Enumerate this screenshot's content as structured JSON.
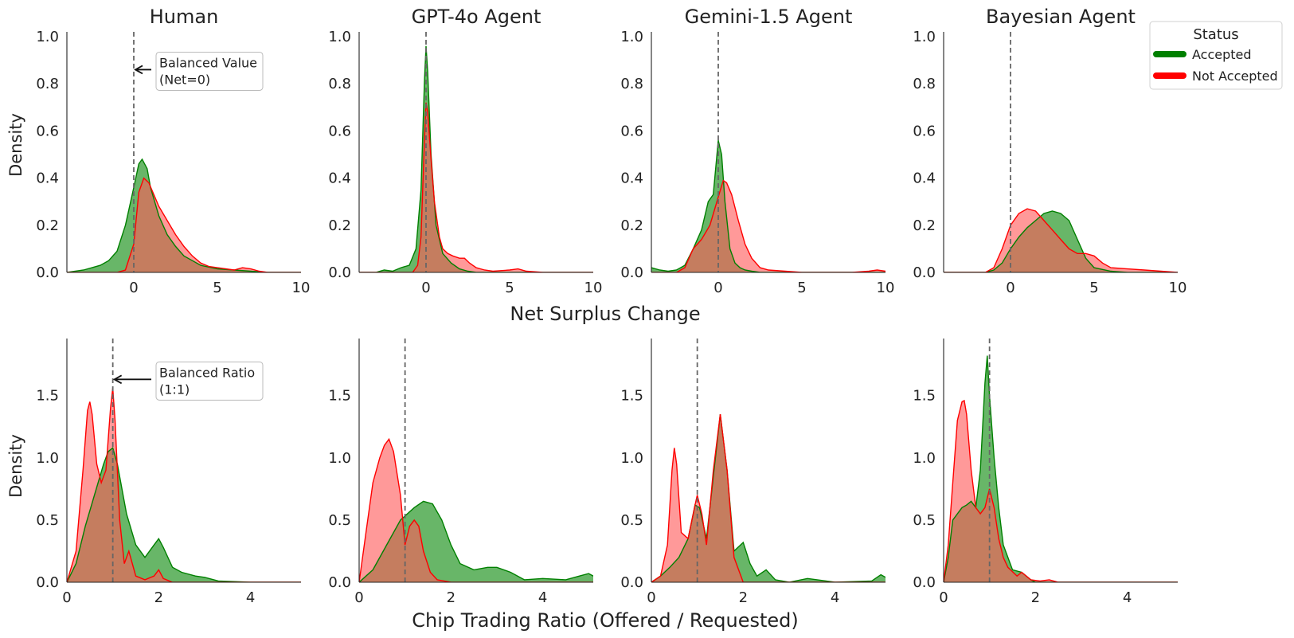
{
  "figure": {
    "row_xlabels": [
      "Net Surplus Change",
      "Chip Trading Ratio (Offered / Requested)"
    ],
    "ylabel": "Density",
    "legend": {
      "title": "Status",
      "entries": [
        {
          "label": "Accepted",
          "color": "#008000"
        },
        {
          "label": "Not Accepted",
          "color": "#ff0000"
        }
      ]
    },
    "colors": {
      "accepted_fill": "#2e9a2e",
      "accepted_line": "#008000",
      "not_accepted_fill": "#ff5a5a",
      "not_accepted_line": "#ff0000",
      "overlap": "#b5401e",
      "ref_line": "#666666"
    }
  },
  "chart_data": [
    {
      "type": "area",
      "row": 0,
      "col": 0,
      "title": "Human",
      "xlabel": "Net Surplus Change",
      "ylabel": "Density",
      "xlim": [
        -4,
        10
      ],
      "ylim": [
        0,
        1.0
      ],
      "xticks": [
        0,
        5,
        10
      ],
      "yticks": [
        0.0,
        0.2,
        0.4,
        0.6,
        0.8,
        1.0
      ],
      "reference_line": 0,
      "annotation": {
        "lines": [
          "Balanced Value",
          "(Net=0)"
        ],
        "arrow_to": [
          0,
          0.86
        ]
      },
      "series": [
        {
          "name": "Accepted",
          "x": [
            -4,
            -3,
            -2.5,
            -2,
            -1.5,
            -1,
            -0.5,
            0,
            0.3,
            0.5,
            0.8,
            1,
            1.5,
            2,
            2.5,
            3,
            3.5,
            4,
            5,
            6,
            7,
            8,
            9,
            10
          ],
          "y": [
            0,
            0.01,
            0.02,
            0.03,
            0.05,
            0.09,
            0.2,
            0.36,
            0.46,
            0.48,
            0.44,
            0.36,
            0.24,
            0.16,
            0.11,
            0.07,
            0.05,
            0.03,
            0.015,
            0.01,
            0.005,
            0,
            0,
            0
          ]
        },
        {
          "name": "Not Accepted",
          "x": [
            -4,
            -1,
            -0.5,
            0,
            0.3,
            0.6,
            0.9,
            1.2,
            1.5,
            2,
            2.5,
            3,
            3.5,
            4,
            4.5,
            5,
            6,
            6.5,
            7,
            7.5,
            8,
            9,
            10
          ],
          "y": [
            0,
            0,
            0.01,
            0.12,
            0.34,
            0.4,
            0.38,
            0.33,
            0.28,
            0.22,
            0.16,
            0.11,
            0.07,
            0.04,
            0.025,
            0.02,
            0.01,
            0.02,
            0.015,
            0.005,
            0,
            0,
            0
          ]
        }
      ]
    },
    {
      "type": "area",
      "row": 0,
      "col": 1,
      "title": "GPT-4o Agent",
      "xlabel": "Net Surplus Change",
      "ylabel": "Density",
      "xlim": [
        -4,
        10
      ],
      "ylim": [
        0,
        1.0
      ],
      "xticks": [
        0,
        5,
        10
      ],
      "yticks": [
        0.0,
        0.2,
        0.4,
        0.6,
        0.8,
        1.0
      ],
      "reference_line": 0,
      "series": [
        {
          "name": "Accepted",
          "x": [
            -4,
            -3,
            -2.5,
            -2,
            -1.5,
            -1,
            -0.6,
            -0.3,
            -0.1,
            0,
            0.1,
            0.3,
            0.6,
            1,
            1.5,
            2,
            2.5,
            3,
            4,
            5,
            6,
            10
          ],
          "y": [
            0,
            0,
            0.01,
            0.005,
            0.02,
            0.03,
            0.1,
            0.35,
            0.8,
            0.96,
            0.85,
            0.5,
            0.2,
            0.08,
            0.04,
            0.015,
            0.005,
            0,
            0,
            0,
            0,
            0
          ]
        },
        {
          "name": "Not Accepted",
          "x": [
            -4,
            -0.8,
            -0.5,
            -0.3,
            -0.1,
            0,
            0.1,
            0.3,
            0.5,
            0.8,
            1,
            1.3,
            1.6,
            2,
            2.3,
            2.6,
            3,
            3.5,
            4,
            5,
            5.5,
            6,
            7,
            10
          ],
          "y": [
            0,
            0,
            0.03,
            0.15,
            0.55,
            0.72,
            0.68,
            0.48,
            0.3,
            0.15,
            0.1,
            0.08,
            0.07,
            0.06,
            0.06,
            0.04,
            0.02,
            0.01,
            0.005,
            0.01,
            0.015,
            0.005,
            0,
            0
          ]
        }
      ]
    },
    {
      "type": "area",
      "row": 0,
      "col": 2,
      "title": "Gemini-1.5 Agent",
      "xlabel": "Net Surplus Change",
      "ylabel": "Density",
      "xlim": [
        -4,
        10
      ],
      "ylim": [
        0,
        1.0
      ],
      "xticks": [
        0,
        5,
        10
      ],
      "yticks": [
        0.0,
        0.2,
        0.4,
        0.6,
        0.8,
        1.0
      ],
      "reference_line": 0,
      "series": [
        {
          "name": "Accepted",
          "x": [
            -4,
            -3.5,
            -3,
            -2.5,
            -2,
            -1.5,
            -1,
            -0.6,
            -0.3,
            0,
            0.2,
            0.4,
            0.7,
            1,
            1.3,
            1.6,
            2,
            2.5,
            3,
            4,
            10
          ],
          "y": [
            0.02,
            0.01,
            0.005,
            0.01,
            0.03,
            0.1,
            0.18,
            0.3,
            0.33,
            0.56,
            0.5,
            0.3,
            0.1,
            0.04,
            0.02,
            0.01,
            0.005,
            0,
            0,
            0,
            0
          ]
        },
        {
          "name": "Not Accepted",
          "x": [
            -4,
            -2.5,
            -2,
            -1.5,
            -1,
            -0.5,
            0,
            0.3,
            0.5,
            0.8,
            1.2,
            1.6,
            2,
            2.5,
            3,
            4,
            5,
            8,
            9,
            9.5,
            10
          ],
          "y": [
            0,
            0,
            0.02,
            0.1,
            0.14,
            0.2,
            0.32,
            0.39,
            0.38,
            0.33,
            0.22,
            0.12,
            0.06,
            0.02,
            0.01,
            0.005,
            0,
            0,
            0.005,
            0.01,
            0.005
          ]
        }
      ]
    },
    {
      "type": "area",
      "row": 0,
      "col": 3,
      "title": "Bayesian Agent",
      "xlabel": "Net Surplus Change",
      "ylabel": "Density",
      "xlim": [
        -4,
        10
      ],
      "ylim": [
        0,
        1.0
      ],
      "xticks": [
        0,
        5,
        10
      ],
      "yticks": [
        0.0,
        0.2,
        0.4,
        0.6,
        0.8,
        1.0
      ],
      "reference_line": 0,
      "series": [
        {
          "name": "Accepted",
          "x": [
            -4,
            -1.5,
            -1,
            -0.5,
            0,
            0.5,
            1,
            1.5,
            2,
            2.5,
            3,
            3.5,
            4,
            4.5,
            5,
            6,
            7,
            10
          ],
          "y": [
            0,
            0,
            0.01,
            0.04,
            0.1,
            0.15,
            0.19,
            0.22,
            0.25,
            0.26,
            0.25,
            0.22,
            0.14,
            0.06,
            0.02,
            0.005,
            0,
            0
          ]
        },
        {
          "name": "Not Accepted",
          "x": [
            -4,
            -1.5,
            -1,
            -0.5,
            0,
            0.5,
            1,
            1.5,
            2,
            2.5,
            3,
            3.5,
            4,
            4.5,
            5,
            5.5,
            6,
            7,
            8,
            9,
            10
          ],
          "y": [
            0,
            0,
            0.02,
            0.1,
            0.2,
            0.25,
            0.27,
            0.26,
            0.22,
            0.18,
            0.14,
            0.1,
            0.08,
            0.08,
            0.07,
            0.04,
            0.02,
            0.015,
            0.01,
            0.005,
            0
          ]
        }
      ]
    },
    {
      "type": "area",
      "row": 1,
      "col": 0,
      "title": "",
      "xlabel": "Chip Trading Ratio (Offered / Requested)",
      "ylabel": "Density",
      "xlim": [
        0,
        5.1
      ],
      "ylim": [
        0,
        1.92
      ],
      "xticks": [
        0,
        2,
        4
      ],
      "yticks": [
        0.0,
        0.5,
        1.0,
        1.5
      ],
      "reference_line": 1,
      "annotation": {
        "lines": [
          "Balanced Ratio",
          "(1:1)"
        ],
        "arrow_to": [
          1,
          1.63
        ]
      },
      "series": [
        {
          "name": "Accepted",
          "x": [
            0,
            0.2,
            0.4,
            0.6,
            0.8,
            0.9,
            1,
            1.1,
            1.3,
            1.5,
            1.7,
            1.9,
            2,
            2.1,
            2.3,
            2.5,
            2.8,
            3,
            3.3,
            4,
            5.1
          ],
          "y": [
            0,
            0.15,
            0.45,
            0.7,
            0.95,
            1.05,
            1.08,
            0.95,
            0.55,
            0.3,
            0.2,
            0.3,
            0.35,
            0.28,
            0.12,
            0.08,
            0.05,
            0.04,
            0.01,
            0,
            0
          ]
        },
        {
          "name": "Not Accepted",
          "x": [
            0,
            0.2,
            0.35,
            0.45,
            0.5,
            0.55,
            0.65,
            0.75,
            0.85,
            0.95,
            1,
            1.05,
            1.15,
            1.25,
            1.35,
            1.5,
            1.7,
            1.9,
            2,
            2.1,
            2.3,
            3,
            5.1
          ],
          "y": [
            0,
            0.25,
            0.9,
            1.38,
            1.45,
            1.35,
            0.95,
            0.8,
            0.9,
            1.4,
            1.56,
            1.3,
            0.5,
            0.15,
            0.25,
            0.05,
            0.02,
            0.05,
            0.1,
            0.03,
            0,
            0,
            0
          ]
        }
      ]
    },
    {
      "type": "area",
      "row": 1,
      "col": 1,
      "title": "",
      "xlabel": "Chip Trading Ratio (Offered / Requested)",
      "ylabel": "Density",
      "xlim": [
        0,
        5.1
      ],
      "ylim": [
        0,
        1.92
      ],
      "xticks": [
        0,
        2,
        4
      ],
      "yticks": [
        0.0,
        0.5,
        1.0,
        1.5
      ],
      "reference_line": 1,
      "series": [
        {
          "name": "Accepted",
          "x": [
            0,
            0.3,
            0.6,
            0.9,
            1.2,
            1.4,
            1.6,
            1.8,
            2,
            2.2,
            2.5,
            2.8,
            3,
            3.3,
            3.6,
            4,
            4.5,
            4.8,
            5,
            5.1
          ],
          "y": [
            0,
            0.1,
            0.3,
            0.5,
            0.6,
            0.65,
            0.63,
            0.5,
            0.3,
            0.15,
            0.1,
            0.12,
            0.12,
            0.08,
            0.02,
            0.03,
            0.02,
            0.05,
            0.07,
            0.05
          ]
        },
        {
          "name": "Not Accepted",
          "x": [
            0,
            0.15,
            0.3,
            0.45,
            0.55,
            0.65,
            0.75,
            0.9,
            1,
            1.1,
            1.2,
            1.3,
            1.4,
            1.55,
            1.7,
            2,
            5.1
          ],
          "y": [
            0,
            0.4,
            0.8,
            1.0,
            1.1,
            1.15,
            1.05,
            0.7,
            0.3,
            0.45,
            0.5,
            0.45,
            0.25,
            0.08,
            0.02,
            0,
            0
          ]
        }
      ]
    },
    {
      "type": "area",
      "row": 1,
      "col": 2,
      "title": "",
      "xlabel": "Chip Trading Ratio (Offered / Requested)",
      "ylabel": "Density",
      "xlim": [
        0,
        5.1
      ],
      "ylim": [
        0,
        1.92
      ],
      "xticks": [
        0,
        2,
        4
      ],
      "yticks": [
        0.0,
        0.5,
        1.0,
        1.5
      ],
      "reference_line": 1,
      "series": [
        {
          "name": "Accepted",
          "x": [
            0,
            0.2,
            0.4,
            0.6,
            0.8,
            0.95,
            1.05,
            1.2,
            1.35,
            1.5,
            1.65,
            1.8,
            2,
            2.15,
            2.3,
            2.5,
            2.7,
            3,
            3.4,
            4,
            4.8,
            5,
            5.1
          ],
          "y": [
            0,
            0.05,
            0.12,
            0.2,
            0.35,
            0.62,
            0.6,
            0.35,
            0.85,
            1.35,
            0.9,
            0.25,
            0.32,
            0.15,
            0.05,
            0.1,
            0.02,
            0,
            0.03,
            0,
            0.01,
            0.06,
            0.04
          ]
        },
        {
          "name": "Not Accepted",
          "x": [
            0,
            0.2,
            0.35,
            0.45,
            0.5,
            0.55,
            0.65,
            0.8,
            0.95,
            1,
            1.1,
            1.2,
            1.35,
            1.5,
            1.65,
            1.8,
            2,
            5.1
          ],
          "y": [
            0,
            0.05,
            0.3,
            0.9,
            1.08,
            0.95,
            0.4,
            0.35,
            0.62,
            0.7,
            0.55,
            0.3,
            0.9,
            1.35,
            0.9,
            0.2,
            0,
            0
          ]
        }
      ]
    },
    {
      "type": "area",
      "row": 1,
      "col": 3,
      "title": "",
      "xlabel": "Chip Trading Ratio (Offered / Requested)",
      "ylabel": "Density",
      "xlim": [
        0,
        5.1
      ],
      "ylim": [
        0,
        1.92
      ],
      "xticks": [
        0,
        2,
        4
      ],
      "yticks": [
        0.0,
        0.5,
        1.0,
        1.5
      ],
      "reference_line": 1,
      "series": [
        {
          "name": "Accepted",
          "x": [
            0,
            0.1,
            0.2,
            0.3,
            0.4,
            0.5,
            0.6,
            0.7,
            0.8,
            0.9,
            0.95,
            1,
            1.1,
            1.2,
            1.3,
            1.5,
            1.7,
            1.8,
            1.9,
            2,
            5.1
          ],
          "y": [
            0,
            0.2,
            0.5,
            0.55,
            0.6,
            0.62,
            0.65,
            0.6,
            0.9,
            1.6,
            1.82,
            1.5,
            1.0,
            0.6,
            0.3,
            0.1,
            0.08,
            0.05,
            0.02,
            0,
            0
          ]
        },
        {
          "name": "Not Accepted",
          "x": [
            0,
            0.1,
            0.2,
            0.3,
            0.4,
            0.45,
            0.5,
            0.6,
            0.7,
            0.8,
            0.9,
            1,
            1.1,
            1.2,
            1.3,
            1.4,
            1.6,
            1.7,
            1.9,
            2.1,
            2.3,
            2.5,
            5.1
          ],
          "y": [
            0,
            0.3,
            0.8,
            1.3,
            1.45,
            1.46,
            1.35,
            0.9,
            0.6,
            0.55,
            0.6,
            0.75,
            0.6,
            0.35,
            0.2,
            0.12,
            0.05,
            0.08,
            0.02,
            0.01,
            0.02,
            0,
            0
          ]
        }
      ]
    }
  ]
}
